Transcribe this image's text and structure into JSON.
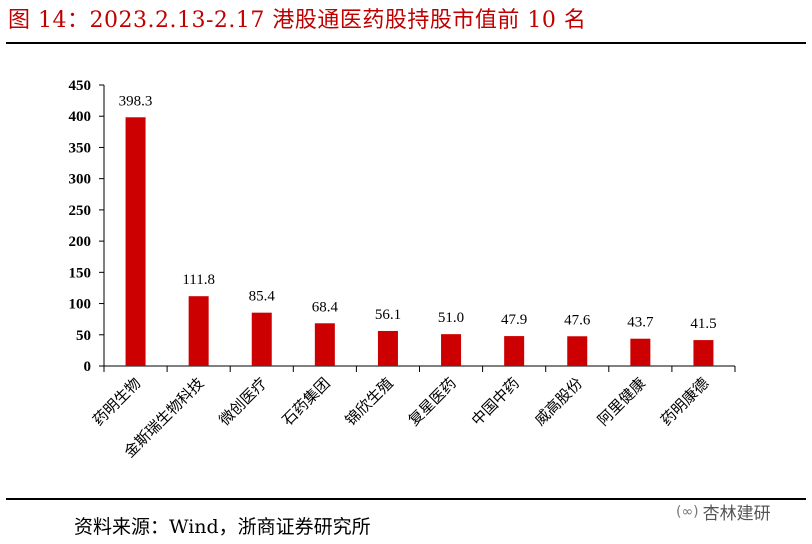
{
  "title": "图 14：2023.2.13-2.17 港股通医药股持股市值前 10 名",
  "source": "资料来源：Wind，浙商证券研究所",
  "watermark": {
    "text": "杏林建研",
    "icon": "wechat-icon"
  },
  "colors": {
    "bar": "#cc0000",
    "title": "#c00000",
    "axis": "#000000"
  },
  "chart_data": {
    "type": "bar",
    "title": "",
    "xlabel": "",
    "ylabel": "",
    "categories": [
      "药明生物",
      "金斯瑞生物科技",
      "微创医疗",
      "石药集团",
      "锦欣生殖",
      "复星医药",
      "中国中药",
      "威高股份",
      "阿里健康",
      "药明康德"
    ],
    "values": [
      398.3,
      111.8,
      85.4,
      68.4,
      56.1,
      51.0,
      47.9,
      47.6,
      43.7,
      41.5
    ],
    "value_labels": [
      "398.3",
      "111.8",
      "85.4",
      "68.4",
      "56.1",
      "51.0",
      "47.9",
      "47.6",
      "43.7",
      "41.5"
    ],
    "ylim": [
      0,
      450
    ],
    "yticks": [
      "0",
      "50",
      "100",
      "150",
      "200",
      "250",
      "300",
      "350",
      "400",
      "450"
    ],
    "grid": false,
    "legend": "none"
  }
}
